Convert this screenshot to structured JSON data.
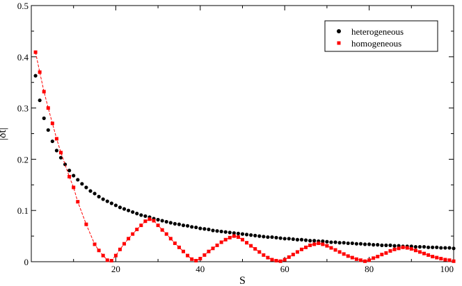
{
  "chart_data": {
    "type": "scatter",
    "xlabel": "S",
    "ylabel": "|δt|",
    "xlim": [
      0,
      100
    ],
    "ylim": [
      0,
      0.5
    ],
    "x_ticks": [
      20,
      40,
      60,
      80,
      100
    ],
    "y_ticks": [
      0,
      0.1,
      0.2,
      0.3,
      0.4,
      0.5
    ],
    "legend_position": "top-right",
    "series": [
      {
        "name": "heterogeneous",
        "marker": "circle",
        "color": "#000000",
        "line": false,
        "x": [
          1,
          2,
          3,
          4,
          5,
          6,
          7,
          8,
          9,
          10,
          11,
          12,
          13,
          14,
          15,
          16,
          17,
          18,
          19,
          20,
          21,
          22,
          23,
          24,
          25,
          26,
          27,
          28,
          29,
          30,
          31,
          32,
          33,
          34,
          35,
          36,
          37,
          38,
          39,
          40,
          41,
          42,
          43,
          44,
          45,
          46,
          47,
          48,
          49,
          50,
          51,
          52,
          53,
          54,
          55,
          56,
          57,
          58,
          59,
          60,
          61,
          62,
          63,
          64,
          65,
          66,
          67,
          68,
          69,
          70,
          71,
          72,
          73,
          74,
          75,
          76,
          77,
          78,
          79,
          80,
          81,
          82,
          83,
          84,
          85,
          86,
          87,
          88,
          89,
          90,
          91,
          92,
          93,
          94,
          95,
          96,
          97,
          98,
          99,
          100
        ],
        "y": [
          0.363,
          0.315,
          0.28,
          0.257,
          0.235,
          0.217,
          0.203,
          0.19,
          0.178,
          0.168,
          0.16,
          0.152,
          0.145,
          0.138,
          0.133,
          0.127,
          0.122,
          0.118,
          0.114,
          0.11,
          0.106,
          0.103,
          0.1,
          0.097,
          0.094,
          0.091,
          0.089,
          0.087,
          0.084,
          0.082,
          0.08,
          0.078,
          0.076,
          0.074,
          0.073,
          0.071,
          0.07,
          0.068,
          0.067,
          0.065,
          0.064,
          0.063,
          0.061,
          0.06,
          0.059,
          0.058,
          0.057,
          0.056,
          0.055,
          0.054,
          0.053,
          0.052,
          0.051,
          0.05,
          0.049,
          0.048,
          0.048,
          0.047,
          0.046,
          0.045,
          0.045,
          0.044,
          0.043,
          0.043,
          0.042,
          0.041,
          0.041,
          0.04,
          0.04,
          0.039,
          0.038,
          0.038,
          0.037,
          0.037,
          0.036,
          0.036,
          0.035,
          0.035,
          0.034,
          0.034,
          0.033,
          0.033,
          0.032,
          0.032,
          0.032,
          0.031,
          0.031,
          0.03,
          0.03,
          0.03,
          0.029,
          0.029,
          0.029,
          0.028,
          0.028,
          0.028,
          0.027,
          0.027,
          0.027,
          0.026
        ]
      },
      {
        "name": "homogeneous",
        "marker": "square",
        "color": "#ff0000",
        "line": true,
        "line_style": "dashed",
        "x": [
          1,
          2,
          3,
          4,
          5,
          6,
          7,
          9,
          10,
          11,
          13,
          15,
          16,
          17,
          18,
          19,
          20,
          21,
          22,
          23,
          24,
          25,
          26,
          27,
          28,
          29,
          30,
          31,
          32,
          33,
          34,
          35,
          36,
          37,
          38,
          39,
          40,
          41,
          42,
          43,
          44,
          45,
          46,
          47,
          48,
          49,
          50,
          51,
          52,
          53,
          54,
          55,
          56,
          57,
          58,
          59,
          60,
          61,
          62,
          63,
          64,
          65,
          66,
          67,
          68,
          69,
          70,
          71,
          72,
          73,
          74,
          75,
          76,
          77,
          78,
          79,
          80,
          81,
          82,
          83,
          84,
          85,
          86,
          87,
          88,
          89,
          90,
          91,
          92,
          93,
          94,
          95,
          96,
          97,
          98,
          99,
          100
        ],
        "y": [
          0.409,
          0.37,
          0.332,
          0.3,
          0.27,
          0.24,
          0.213,
          0.166,
          0.145,
          0.117,
          0.073,
          0.034,
          0.022,
          0.012,
          0.003,
          0.002,
          0.012,
          0.024,
          0.035,
          0.045,
          0.054,
          0.063,
          0.071,
          0.079,
          0.083,
          0.08,
          0.071,
          0.062,
          0.054,
          0.045,
          0.036,
          0.028,
          0.02,
          0.012,
          0.005,
          0.002,
          0.006,
          0.013,
          0.02,
          0.026,
          0.032,
          0.038,
          0.043,
          0.047,
          0.05,
          0.048,
          0.043,
          0.037,
          0.031,
          0.025,
          0.019,
          0.013,
          0.008,
          0.004,
          0.002,
          0.001,
          0.004,
          0.009,
          0.014,
          0.019,
          0.024,
          0.028,
          0.032,
          0.034,
          0.036,
          0.034,
          0.031,
          0.027,
          0.023,
          0.019,
          0.015,
          0.011,
          0.008,
          0.005,
          0.003,
          0.001,
          0.003,
          0.007,
          0.01,
          0.014,
          0.017,
          0.021,
          0.024,
          0.026,
          0.028,
          0.027,
          0.025,
          0.022,
          0.019,
          0.016,
          0.013,
          0.01,
          0.008,
          0.006,
          0.004,
          0.003,
          0.001
        ]
      }
    ]
  }
}
